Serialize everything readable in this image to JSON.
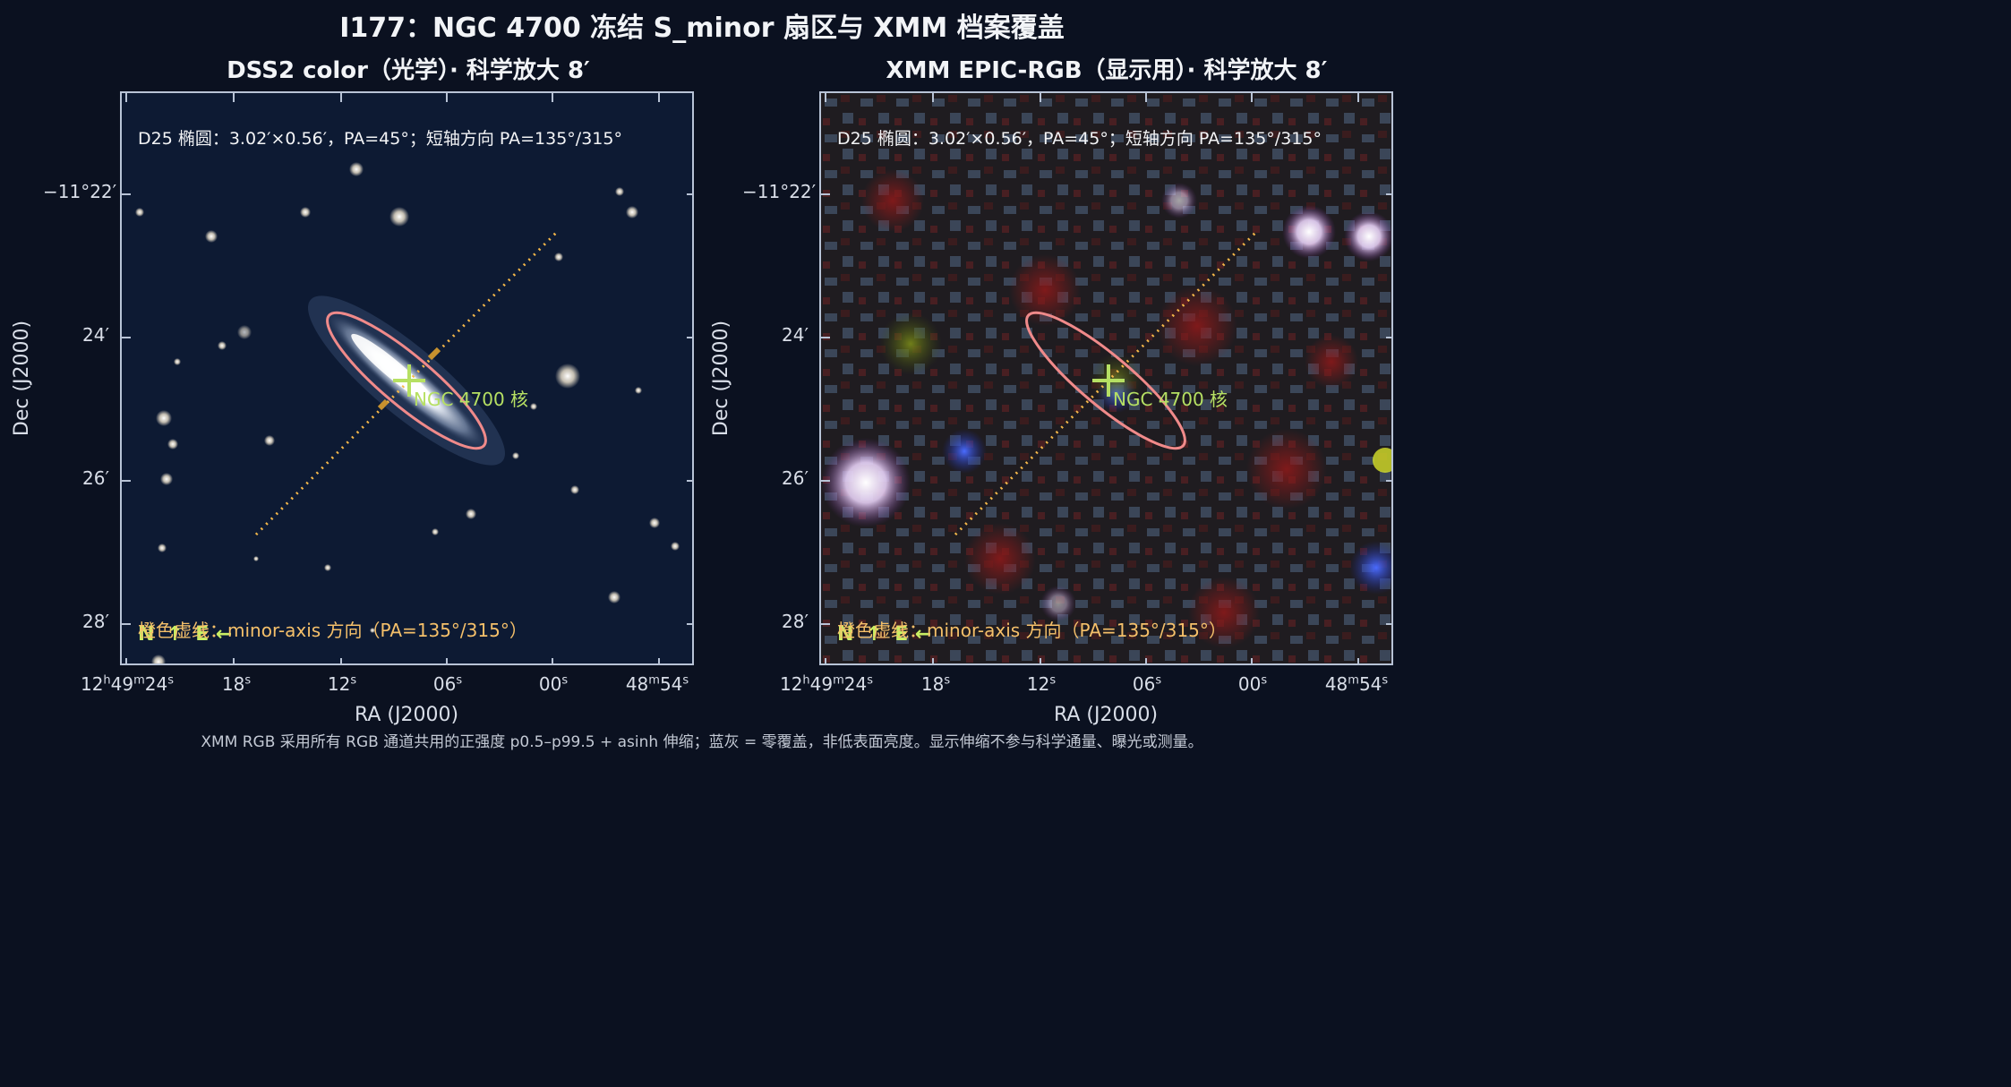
{
  "title": "I177：NGC 4700 冻结 S_minor 扇区与 XMM 档案覆盖",
  "panels": {
    "left": {
      "title": "DSS2 color（光学）· 科学放大 8′",
      "image": "dss2-optical-galaxy-field",
      "bg_color": "#0d1a33"
    },
    "right": {
      "title": "XMM EPIC-RGB（显示用）· 科学放大 8′",
      "image": "xmm-epic-rgb-field",
      "bg_color": "#3b4658"
    }
  },
  "d25_note": "D25 椭圆：3.02′×0.56′，PA=45°；短轴方向 PA=135°/315°",
  "nucleus_label": "NGC 4700 核",
  "minor_axis_note": "橙色虚线：minor-axis 方向（PA=135°/315°）",
  "compass": {
    "north": "N",
    "east": "E"
  },
  "axes": {
    "dec_title": "Dec (J2000)",
    "ra_title": "RA (J2000)",
    "dec_ticks": [
      "−11°22′",
      "24′",
      "26′",
      "28′"
    ],
    "ra_ticks": [
      {
        "h": "12",
        "m": "49",
        "s": "24"
      },
      {
        "s": "18"
      },
      {
        "s": "12"
      },
      {
        "s": "06"
      },
      {
        "s": "00"
      },
      {
        "m": "48",
        "s": "54"
      }
    ]
  },
  "colors": {
    "ellipse": "#f08a8a",
    "minor_axis": "#f5b84a",
    "nucleus_marker": "#b6e063",
    "compass": "#c9ef63"
  },
  "footnote": "XMM RGB 采用所有 RGB 通道共用的正强度 p0.5–p99.5 + asinh 伸缩；蓝灰 = 零覆盖，非低表面亮度。显示伸缩不参与科学通量、曝光或测量。"
}
